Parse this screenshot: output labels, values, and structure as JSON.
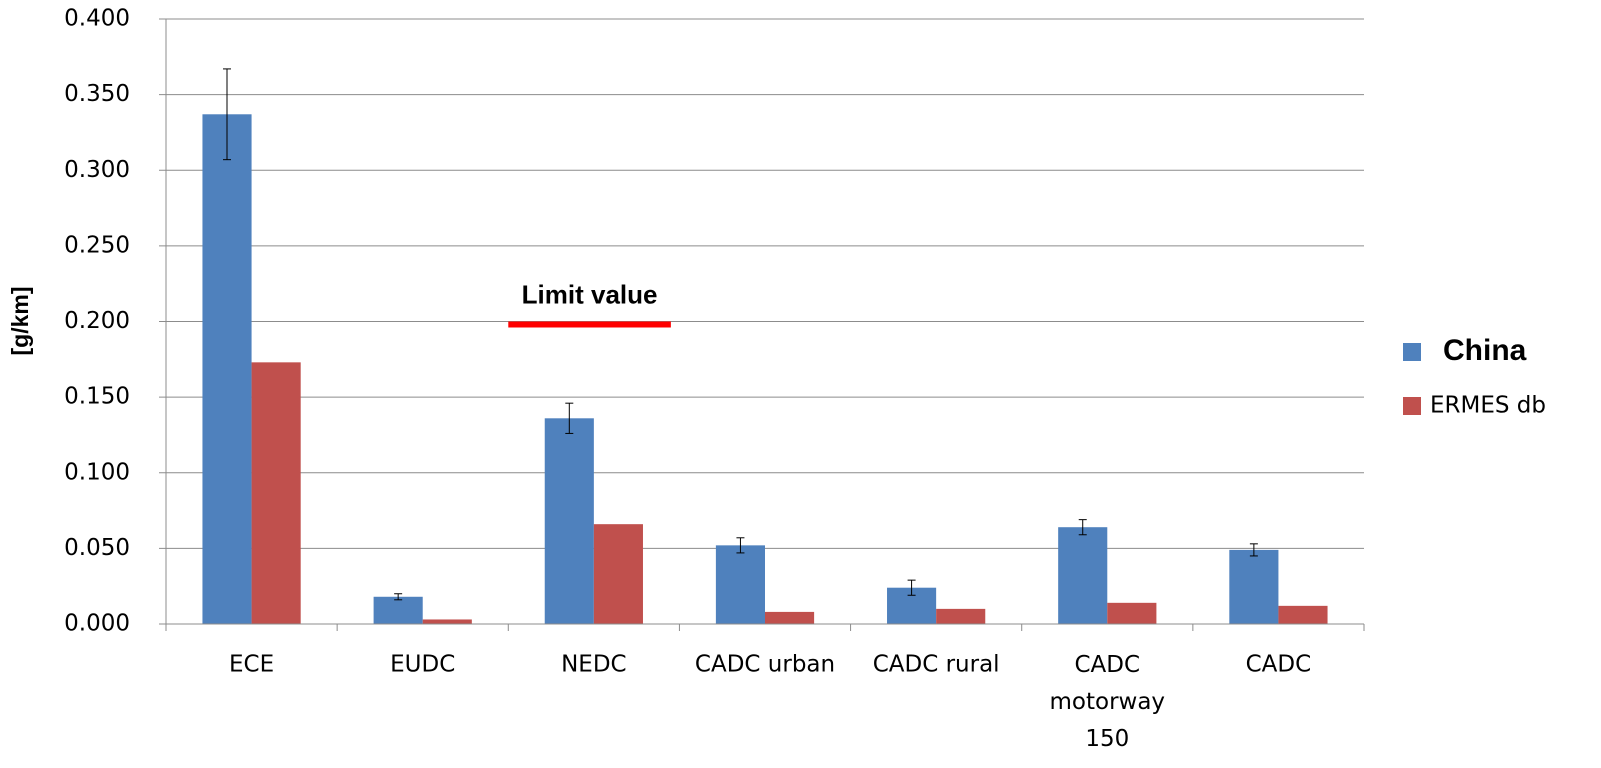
{
  "chart_data": {
    "type": "bar",
    "y_label": "[g/km]",
    "categories": [
      "ECE",
      "EUDC",
      "NEDC",
      "CADC urban",
      "CADC rural",
      "CADC motorway 150",
      "CADC"
    ],
    "series": [
      {
        "name": "China",
        "color": "#4f81bd",
        "values": [
          0.337,
          0.018,
          0.136,
          0.052,
          0.024,
          0.064,
          0.049
        ],
        "errors": [
          0.03,
          0.002,
          0.01,
          0.005,
          0.005,
          0.005,
          0.004
        ]
      },
      {
        "name": "ERMES db",
        "color": "#c0504d",
        "values": [
          0.173,
          0.003,
          0.066,
          0.008,
          0.01,
          0.014,
          0.012
        ]
      }
    ],
    "ylim": [
      0,
      0.4
    ],
    "yticks": [
      {
        "value": 0,
        "label": "0.000"
      },
      {
        "value": 0.05,
        "label": "0.050"
      },
      {
        "value": 0.1,
        "label": "0.100"
      },
      {
        "value": 0.15,
        "label": "0.150"
      },
      {
        "value": 0.2,
        "label": "0.200"
      },
      {
        "value": 0.25,
        "label": "0.250"
      },
      {
        "value": 0.3,
        "label": "0.300"
      },
      {
        "value": 0.35,
        "label": "0.350"
      },
      {
        "value": 0.4,
        "label": "0.400"
      }
    ],
    "grid": true,
    "legend": "right",
    "annotation": {
      "text": "Limit value",
      "value": 0.198,
      "category": 2,
      "color": "#ff0000"
    }
  }
}
